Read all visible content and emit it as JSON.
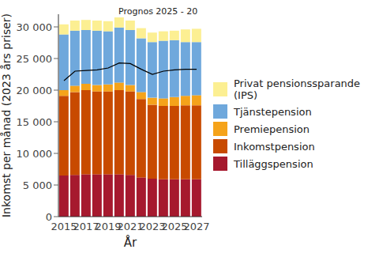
{
  "chart_data": {
    "type": "bar",
    "stacked": true,
    "annotation": "Prognos 2025 - 20",
    "x_label": "År",
    "y_label": "Inkomst per månad (2023 års priser)",
    "categories": [
      "2015",
      null,
      "2017",
      null,
      "2019",
      null,
      "2021",
      null,
      "2023",
      null,
      "2025",
      null,
      "2027"
    ],
    "ylim": [
      0,
      32000
    ],
    "yticks": [
      0,
      {
        "value": 5000,
        "label": "5 000"
      },
      {
        "value": 10000,
        "label": "10 000"
      },
      {
        "value": 15000,
        "label": "15 000"
      },
      {
        "value": 20000,
        "label": "20 000"
      },
      {
        "value": 25000,
        "label": "25 000"
      },
      {
        "value": 30000,
        "label": "30 000"
      }
    ],
    "legend": "right",
    "series": [
      {
        "name": "Tilläggspension",
        "color": "#a6192e",
        "values": [
          6500,
          6600,
          6700,
          6700,
          6700,
          6700,
          6600,
          6200,
          6000,
          5900,
          5900,
          5900,
          5900
        ]
      },
      {
        "name": "Inkomstpension",
        "color": "#c84a00",
        "values": [
          12600,
          13100,
          13300,
          13100,
          13100,
          13300,
          13200,
          12400,
          11700,
          11600,
          11600,
          11700,
          11700
        ]
      },
      {
        "name": "Premiepension",
        "color": "#f5a31a",
        "values": [
          900,
          1000,
          1000,
          1000,
          1100,
          1200,
          1000,
          1100,
          1100,
          1200,
          1400,
          1500,
          1600
        ]
      },
      {
        "name": "Tjänstepension",
        "color": "#6fa8dc",
        "values": [
          8800,
          8700,
          8500,
          8600,
          8400,
          8700,
          8700,
          8500,
          8800,
          9100,
          9000,
          8500,
          8400
        ]
      },
      {
        "name": "Privat pensionssparande (IPS)",
        "color": "#fcef92",
        "values": [
          1600,
          1600,
          1600,
          1600,
          1600,
          1600,
          1500,
          1600,
          1500,
          1500,
          1500,
          2000,
          2100
        ]
      },
      {
        "type": "line",
        "color": "#000000",
        "values": [
          21500,
          23000,
          23100,
          23200,
          23500,
          24300,
          24200,
          23300,
          22500,
          23000,
          23200,
          23300,
          23300
        ]
      }
    ]
  }
}
